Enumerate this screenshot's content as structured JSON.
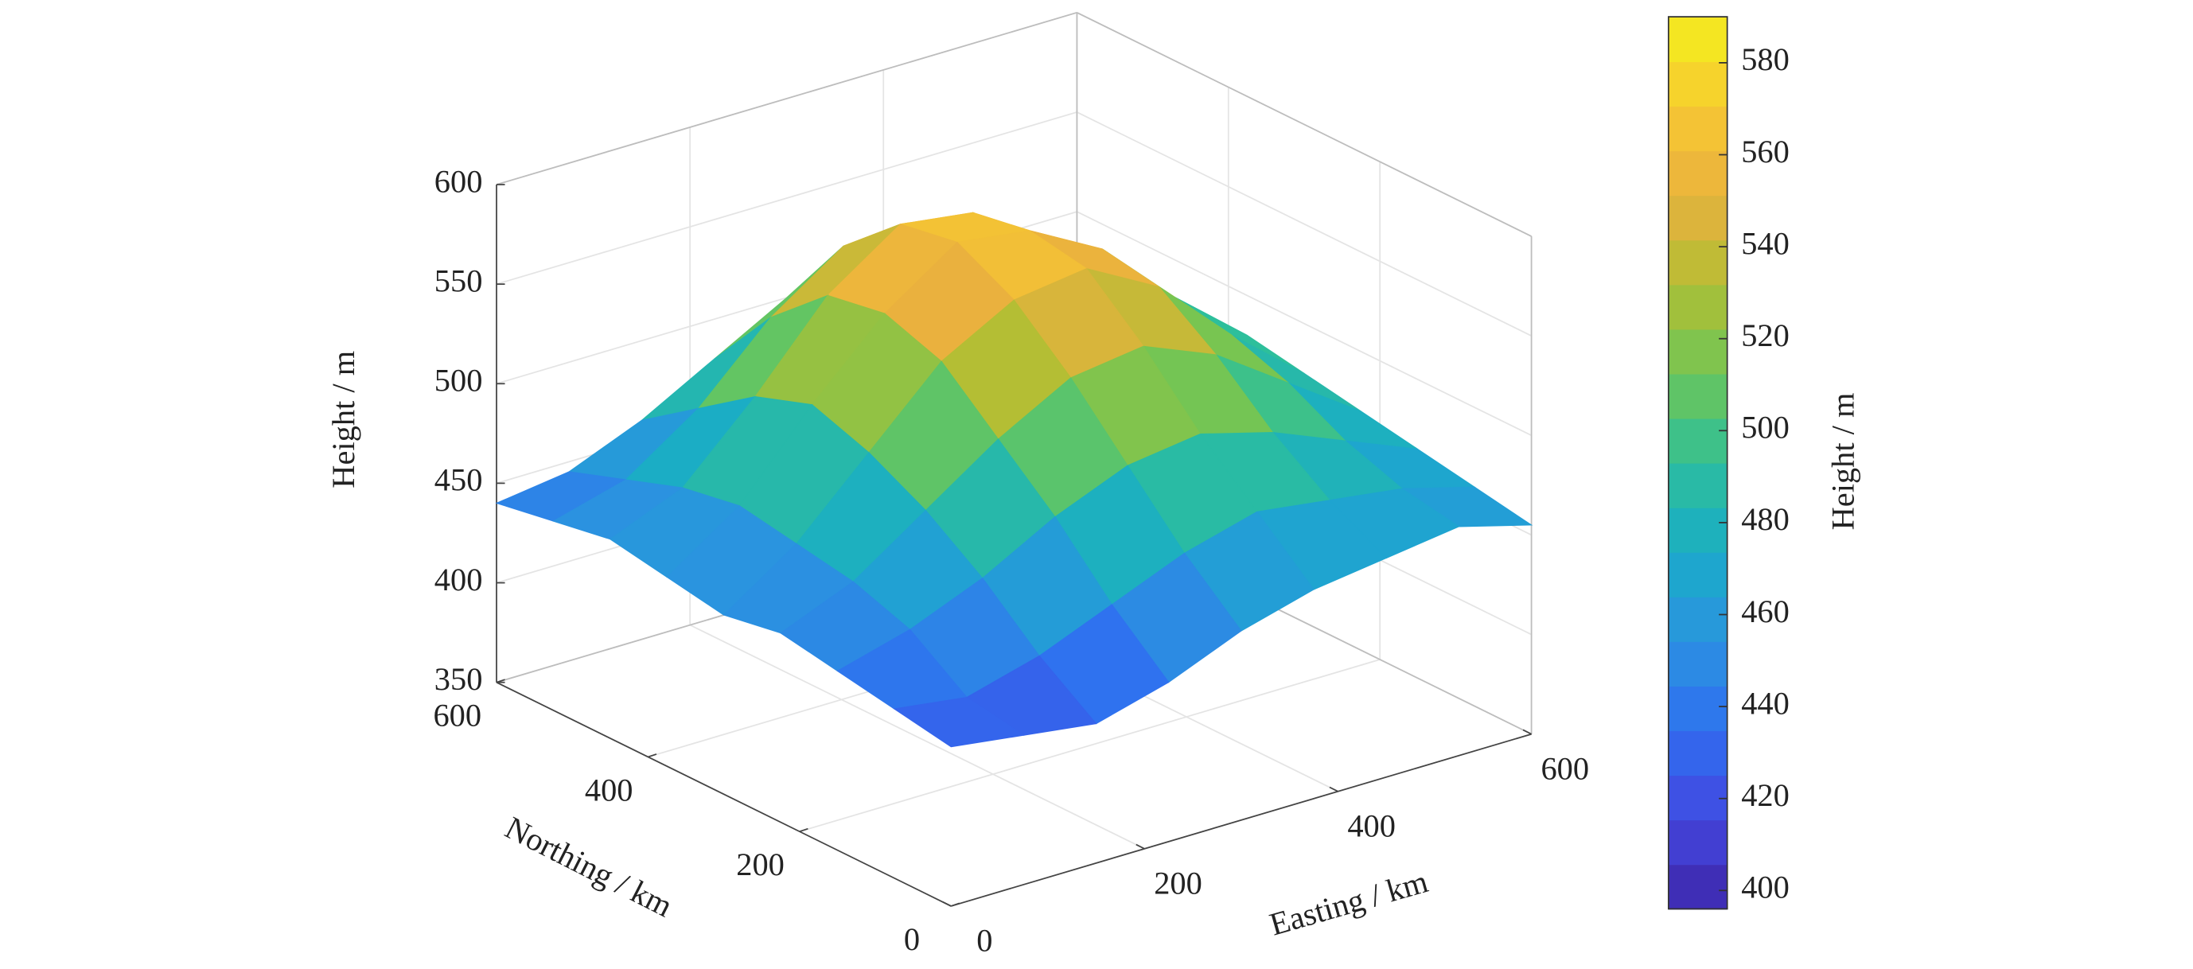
{
  "chart_data": {
    "type": "surface",
    "xlabel": "Easting / km",
    "ylabel": "Northing / km",
    "zlabel": "Height / m",
    "x": [
      0,
      75,
      150,
      225,
      300,
      375,
      450,
      525,
      600
    ],
    "y": [
      0,
      75,
      150,
      225,
      300,
      375,
      450,
      525,
      600
    ],
    "z": [
      [
        430,
        425,
        420,
        430,
        445,
        455,
        460,
        465,
        455
      ],
      [
        435,
        430,
        440,
        455,
        470,
        480,
        475,
        470,
        460
      ],
      [
        440,
        450,
        465,
        485,
        500,
        505,
        495,
        480,
        465
      ],
      [
        445,
        460,
        485,
        510,
        530,
        535,
        520,
        495,
        470
      ],
      [
        440,
        465,
        500,
        535,
        555,
        560,
        540,
        505,
        475
      ],
      [
        445,
        470,
        510,
        545,
        570,
        565,
        545,
        510,
        480
      ],
      [
        450,
        465,
        500,
        540,
        565,
        560,
        535,
        500,
        470
      ],
      [
        445,
        455,
        480,
        515,
        540,
        535,
        510,
        480,
        460
      ],
      [
        440,
        445,
        460,
        480,
        500,
        500,
        485,
        465,
        450
      ]
    ],
    "xlim": [
      0,
      600
    ],
    "ylim": [
      0,
      600
    ],
    "zlim": [
      350,
      600
    ],
    "xticks": [
      0,
      200,
      400,
      600
    ],
    "yticks": [
      0,
      200,
      400,
      600
    ],
    "zticks": [
      350,
      400,
      450,
      500,
      550,
      600
    ],
    "grid": true,
    "colormap": [
      "#3e26a8",
      "#4347e0",
      "#2f6ff0",
      "#2b93e0",
      "#19acc8",
      "#2ebf9a",
      "#6fc656",
      "#b2be34",
      "#eab13e",
      "#f7c932",
      "#f3f01c"
    ],
    "colorbar": {
      "label": "Height / m",
      "clim": [
        396,
        590
      ],
      "ticks": [
        400,
        420,
        440,
        460,
        480,
        500,
        520,
        540,
        560,
        580
      ]
    }
  }
}
